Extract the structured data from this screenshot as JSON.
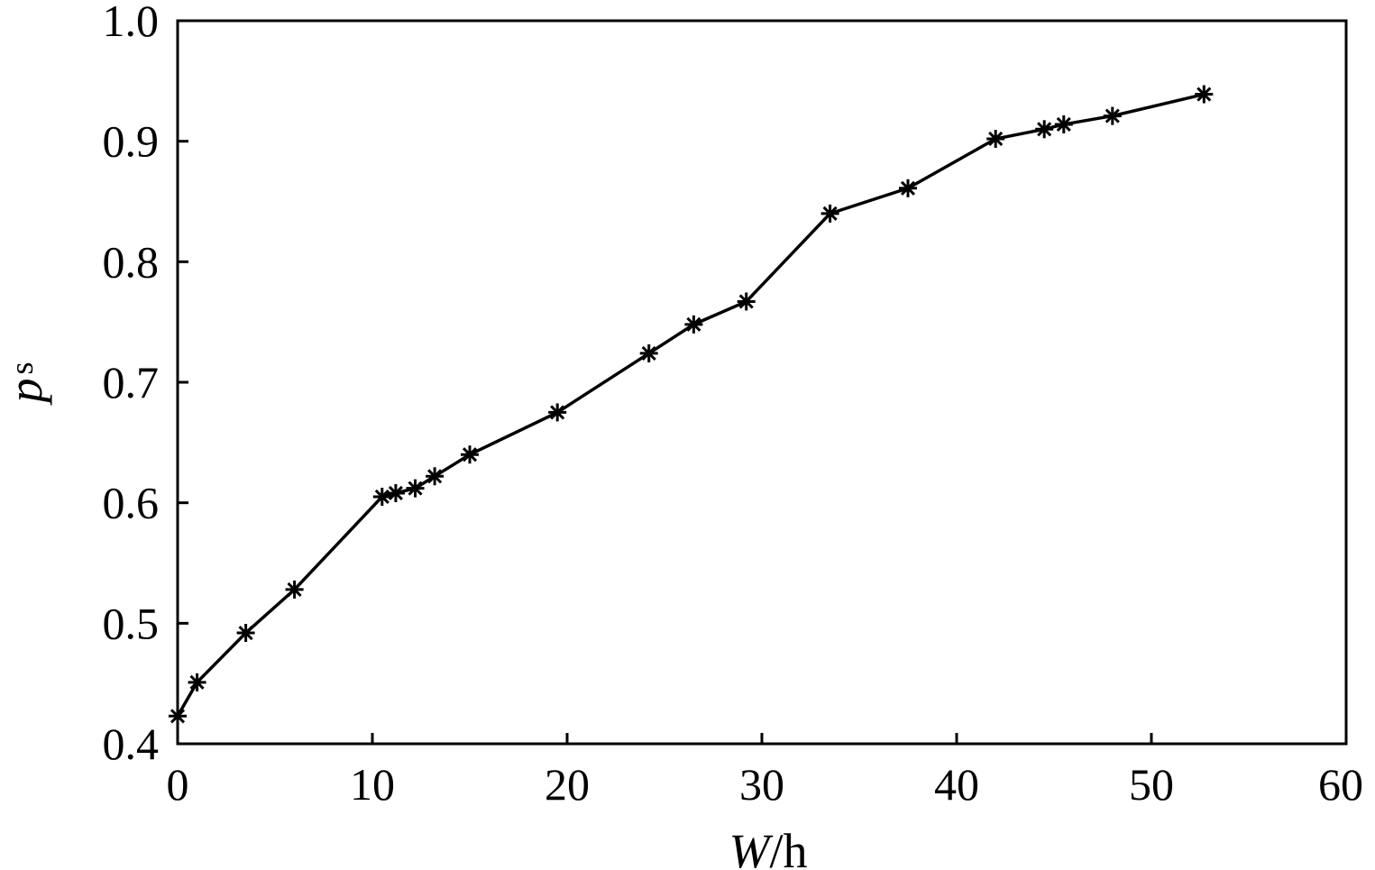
{
  "chart_data": {
    "type": "line",
    "title": "",
    "xlabel_main": "W",
    "xlabel_unit": "/h",
    "ylabel_main": "p",
    "ylabel_sub": "s",
    "xlim": [
      0,
      60
    ],
    "ylim": [
      0.4,
      1.0
    ],
    "xticks": [
      "0",
      "10",
      "20",
      "30",
      "40",
      "50",
      "60"
    ],
    "yticks": [
      "0.4",
      "0.5",
      "0.6",
      "0.7",
      "0.8",
      "0.9",
      "1.0"
    ],
    "grid": false,
    "marker": "asterisk",
    "line_color": "#000000",
    "series": [
      {
        "x": [
          0,
          1,
          3.5,
          6,
          10.5,
          11.2,
          12.2,
          13.2,
          15,
          19.5,
          24.2,
          26.5,
          29.2,
          33.5,
          37.5,
          42,
          44.5,
          45.5,
          48,
          52.7
        ],
        "y": [
          0.423,
          0.451,
          0.492,
          0.528,
          0.605,
          0.608,
          0.612,
          0.622,
          0.64,
          0.675,
          0.724,
          0.748,
          0.767,
          0.84,
          0.861,
          0.902,
          0.91,
          0.914,
          0.921,
          0.939
        ]
      }
    ]
  }
}
